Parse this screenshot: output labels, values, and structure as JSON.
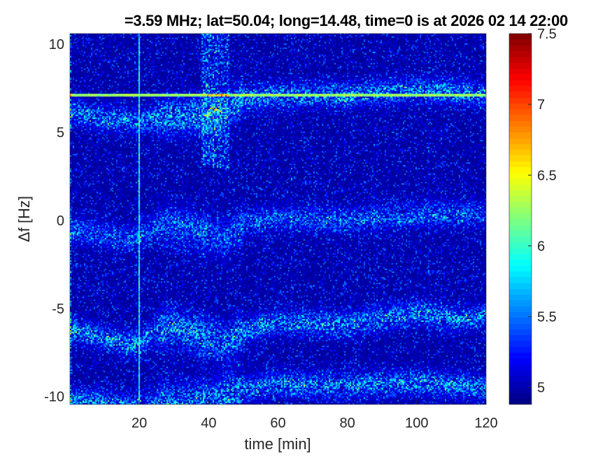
{
  "chart_data": {
    "type": "heatmap",
    "title": "=3.59 MHz;  lat=50.04; long=14.48, time=0 is at 2026 02 14 22:00",
    "xlabel": "time [min]",
    "ylabel": "Δf [Hz]",
    "xlim": [
      0,
      120
    ],
    "ylim": [
      -10.45,
      10.6
    ],
    "xticks": [
      20,
      40,
      60,
      80,
      100,
      120
    ],
    "xtick_labels": [
      "20",
      "40",
      "60",
      "80",
      "100",
      "120"
    ],
    "yticks": [
      -10,
      -5,
      0,
      5,
      10
    ],
    "ytick_labels": [
      "-10",
      "-5",
      "0",
      "5",
      "10"
    ],
    "colormap": "jet",
    "clim": [
      4.88,
      7.5
    ],
    "colorbar_ticks": [
      5,
      5.5,
      6,
      6.5,
      7,
      7.5
    ],
    "colorbar_tick_labels": [
      "5",
      "5.5",
      "6",
      "6.5",
      "7",
      "7.5"
    ],
    "background_level": 4.95,
    "features": {
      "horizontal_line": {
        "freq": 7.1,
        "level": 6.4
      },
      "vertical_line": {
        "time": 20,
        "level": 6.2
      },
      "noisy_band": {
        "time_range": [
          38,
          46
        ],
        "level": 5.5
      },
      "traces": [
        {
          "name": "trace-upper",
          "t": [
            0,
            10,
            20,
            30,
            40,
            45,
            50,
            60,
            80,
            100,
            110,
            120
          ],
          "f": [
            6.2,
            5.8,
            5.6,
            6.0,
            5.9,
            6.3,
            6.9,
            7.1,
            7.1,
            7.4,
            7.3,
            7.1
          ],
          "level": 5.9
        },
        {
          "name": "trace-zero",
          "t": [
            0,
            10,
            18,
            25,
            30,
            40,
            45,
            50,
            60,
            80,
            100,
            120
          ],
          "f": [
            -0.5,
            -0.9,
            -1.1,
            -0.4,
            -0.3,
            -0.8,
            -1.0,
            -0.2,
            0.1,
            0.0,
            0.3,
            0.4
          ],
          "level": 5.7
        },
        {
          "name": "trace-minus6",
          "t": [
            0,
            10,
            18,
            25,
            30,
            40,
            45,
            50,
            60,
            80,
            100,
            110,
            120
          ],
          "f": [
            -6.2,
            -6.7,
            -7.1,
            -6.3,
            -6.0,
            -6.7,
            -7.0,
            -6.3,
            -5.8,
            -5.9,
            -5.2,
            -5.6,
            -5.4
          ],
          "level": 5.9
        },
        {
          "name": "trace-minus9",
          "t": [
            0,
            10,
            20,
            30,
            40,
            50,
            60,
            80,
            100,
            120
          ],
          "f": [
            -10.2,
            -10.4,
            -10.6,
            -10.3,
            -10.2,
            -9.6,
            -9.3,
            -9.4,
            -9.2,
            -9.5
          ],
          "level": 5.9
        }
      ]
    }
  }
}
